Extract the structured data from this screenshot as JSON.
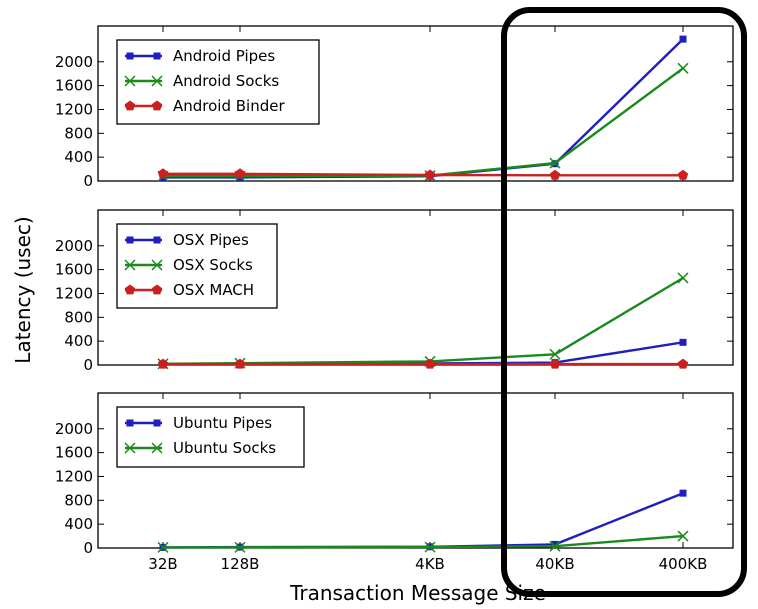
{
  "figure": {
    "xlabel": "Transaction Message Size",
    "ylabel": "Latency (usec)",
    "highlight_box_color": "#000000"
  },
  "chart_data": [
    {
      "type": "line",
      "categories": [
        "32B",
        "128B",
        "4KB",
        "40KB",
        "400KB"
      ],
      "ylim": [
        0,
        2600
      ],
      "yticks": [
        0,
        400,
        800,
        1200,
        1600,
        2000
      ],
      "tick_labels": [
        "0",
        "400",
        "800",
        "1200",
        "1600",
        "2000"
      ],
      "legend_position": "upper-left",
      "grid": false,
      "series": [
        {
          "name": "Android Pipes",
          "color": "#1f1fbf",
          "marker": "square",
          "values": [
            60,
            60,
            80,
            290,
            2380
          ]
        },
        {
          "name": "Android Socks",
          "color": "#1a8a1a",
          "marker": "x",
          "values": [
            80,
            80,
            90,
            300,
            1890
          ]
        },
        {
          "name": "Android Binder",
          "color": "#cc1f1f",
          "marker": "pentagon",
          "values": [
            120,
            120,
            100,
            95,
            95
          ]
        }
      ]
    },
    {
      "type": "line",
      "categories": [
        "32B",
        "128B",
        "4KB",
        "40KB",
        "400KB"
      ],
      "ylim": [
        0,
        2600
      ],
      "yticks": [
        0,
        400,
        800,
        1200,
        1600,
        2000
      ],
      "tick_labels": [
        "0",
        "400",
        "800",
        "1200",
        "1600",
        "2000"
      ],
      "legend_position": "upper-left",
      "grid": false,
      "series": [
        {
          "name": "OSX Pipes",
          "color": "#1f1fbf",
          "marker": "square",
          "values": [
            15,
            20,
            25,
            40,
            380
          ]
        },
        {
          "name": "OSX Socks",
          "color": "#1a8a1a",
          "marker": "x",
          "values": [
            20,
            30,
            60,
            180,
            1460
          ]
        },
        {
          "name": "OSX MACH",
          "color": "#cc1f1f",
          "marker": "pentagon",
          "values": [
            15,
            15,
            15,
            15,
            15
          ]
        }
      ]
    },
    {
      "type": "line",
      "categories": [
        "32B",
        "128B",
        "4KB",
        "40KB",
        "400KB"
      ],
      "ylim": [
        0,
        2600
      ],
      "yticks": [
        0,
        400,
        800,
        1200,
        1600,
        2000
      ],
      "tick_labels": [
        "0",
        "400",
        "800",
        "1200",
        "1600",
        "2000"
      ],
      "legend_position": "upper-left",
      "grid": false,
      "series": [
        {
          "name": "Ubuntu Pipes",
          "color": "#1f1fbf",
          "marker": "square",
          "values": [
            10,
            15,
            20,
            60,
            920
          ]
        },
        {
          "name": "Ubuntu Socks",
          "color": "#1a8a1a",
          "marker": "x",
          "values": [
            10,
            10,
            15,
            30,
            200
          ]
        }
      ]
    }
  ]
}
